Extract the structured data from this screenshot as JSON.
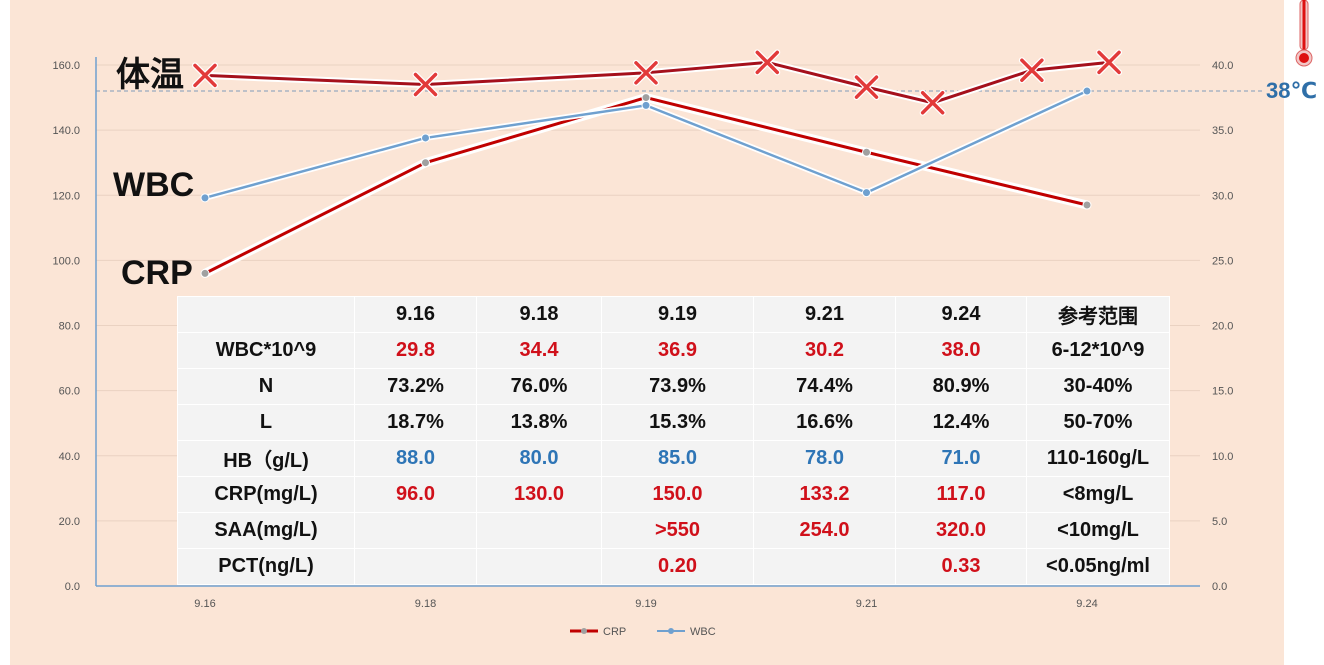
{
  "series_labels": {
    "temperature": "体温",
    "wbc": "WBC",
    "crp": "CRP"
  },
  "temperature_threshold_label": "38℃",
  "legend": [
    "CRP",
    "WBC"
  ],
  "colors": {
    "background": "#fbe5d6",
    "crp": "#c00000",
    "wbc": "#6fa0cf",
    "temperature": "#a5101c",
    "marker": "#e23a3a",
    "threshold": "#7f9cbb",
    "value_red": "#d0101a",
    "value_blue": "#2e75b6"
  },
  "chart_data": {
    "type": "line",
    "categories": [
      "9.16",
      "9.18",
      "9.19",
      "9.21",
      "9.24"
    ],
    "y_left": {
      "range": [
        0,
        160
      ],
      "ticks": [
        "0.0",
        "20.0",
        "40.0",
        "60.0",
        "80.0",
        "100.0",
        "120.0",
        "140.0",
        "160.0"
      ]
    },
    "y_right": {
      "range": [
        0,
        40
      ],
      "ticks": [
        "0.0",
        "5.0",
        "10.0",
        "15.0",
        "20.0",
        "25.0",
        "30.0",
        "35.0",
        "40.0"
      ]
    },
    "series": [
      {
        "name": "CRP",
        "axis": "left",
        "values": [
          96,
          130,
          150,
          133.2,
          117
        ]
      },
      {
        "name": "WBC",
        "axis": "right",
        "values": [
          29.8,
          34.4,
          36.9,
          30.2,
          38.0
        ]
      }
    ],
    "temperature": {
      "axis": "right",
      "points": [
        {
          "x": 0,
          "value": 39.2
        },
        {
          "x": 1,
          "value": 38.5
        },
        {
          "x": 2,
          "value": 39.4
        },
        {
          "x": 2.55,
          "value": 40.2
        },
        {
          "x": 3.0,
          "value": 38.3
        },
        {
          "x": 3.3,
          "value": 37.1
        },
        {
          "x": 3.75,
          "value": 39.6
        },
        {
          "x": 4.1,
          "value": 40.2
        }
      ],
      "threshold": 38
    },
    "grid": true,
    "legend_position": "bottom"
  },
  "table": {
    "header": [
      "",
      "9.16",
      "9.18",
      "9.19",
      "9.21",
      "9.24",
      "参考范围"
    ],
    "rows": [
      {
        "label": "WBC*10^9",
        "values": [
          "29.8",
          "34.4",
          "36.9",
          "30.2",
          "38.0"
        ],
        "ref": "6-12*10^9",
        "style": "red"
      },
      {
        "label": "N",
        "values": [
          "73.2%",
          "76.0%",
          "73.9%",
          "74.4%",
          "80.9%"
        ],
        "ref": "30-40%",
        "style": "normal"
      },
      {
        "label": "L",
        "values": [
          "18.7%",
          "13.8%",
          "15.3%",
          "16.6%",
          "12.4%"
        ],
        "ref": "50-70%",
        "style": "normal"
      },
      {
        "label": "HB（g/L)",
        "values": [
          "88.0",
          "80.0",
          "85.0",
          "78.0",
          "71.0"
        ],
        "ref": "110-160g/L",
        "style": "blue"
      },
      {
        "label": "CRP(mg/L)",
        "values": [
          "96.0",
          "130.0",
          "150.0",
          "133.2",
          "117.0"
        ],
        "ref": "<8mg/L",
        "style": "red"
      },
      {
        "label": "SAA(mg/L)",
        "values": [
          "",
          "",
          ">550",
          "254.0",
          "320.0"
        ],
        "ref": "<10mg/L",
        "style": "red"
      },
      {
        "label": "PCT(ng/L)",
        "values": [
          "",
          "",
          "0.20",
          "",
          "0.33"
        ],
        "ref": "<0.05ng/ml",
        "style": "red"
      }
    ]
  }
}
